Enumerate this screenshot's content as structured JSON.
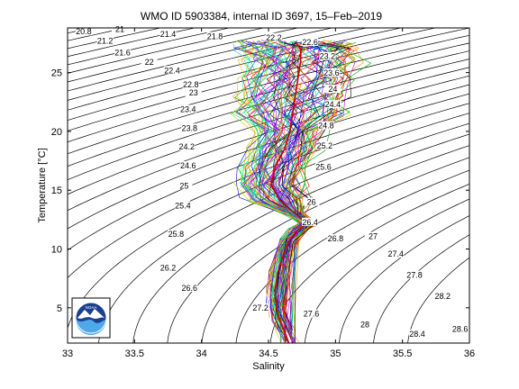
{
  "chart_data": {
    "type": "line",
    "title": "WMO ID 5903384, internal ID 3697, 15–Feb–2019",
    "xlabel": "Salinity",
    "ylabel": "Temperature [°C]",
    "xlim": [
      33,
      36
    ],
    "ylim": [
      2,
      28.8
    ],
    "xticks": [
      "33",
      "33.5",
      "34",
      "34.5",
      "35",
      "35.5",
      "36"
    ],
    "yticks": [
      "5",
      "10",
      "15",
      "20",
      "25"
    ],
    "grid": false,
    "legend": "none",
    "logo": "NOAA",
    "density_labels": [
      {
        "text": "20.8",
        "s": 33.12,
        "t": 28.4
      },
      {
        "text": "21",
        "s": 33.39,
        "t": 28.6
      },
      {
        "text": "21.2",
        "s": 33.28,
        "t": 27.6
      },
      {
        "text": "21.4",
        "s": 33.75,
        "t": 28.2
      },
      {
        "text": "21.6",
        "s": 33.41,
        "t": 26.6
      },
      {
        "text": "22",
        "s": 33.61,
        "t": 25.8
      },
      {
        "text": "22.4",
        "s": 33.78,
        "t": 25.1
      },
      {
        "text": "22.8",
        "s": 33.92,
        "t": 23.9
      },
      {
        "text": "23",
        "s": 33.94,
        "t": 23.2
      },
      {
        "text": "23.4",
        "s": 33.9,
        "t": 21.8
      },
      {
        "text": "23.8",
        "s": 33.91,
        "t": 20.2
      },
      {
        "text": "24.2",
        "s": 33.89,
        "t": 18.6
      },
      {
        "text": "24.6",
        "s": 33.9,
        "t": 17.0
      },
      {
        "text": "25",
        "s": 33.87,
        "t": 15.3
      },
      {
        "text": "25.4",
        "s": 33.86,
        "t": 13.6
      },
      {
        "text": "25.8",
        "s": 33.81,
        "t": 11.2
      },
      {
        "text": "26.2",
        "s": 33.75,
        "t": 8.3
      },
      {
        "text": "26.6",
        "s": 33.91,
        "t": 6.6
      },
      {
        "text": "27.2",
        "s": 34.44,
        "t": 4.9
      },
      {
        "text": "27.6",
        "s": 34.82,
        "t": 4.4
      },
      {
        "text": "28",
        "s": 35.22,
        "t": 3.5
      },
      {
        "text": "28.4",
        "s": 35.61,
        "t": 2.7
      },
      {
        "text": "28.6",
        "s": 35.93,
        "t": 3.1
      },
      {
        "text": "28.2",
        "s": 35.8,
        "t": 5.9
      },
      {
        "text": "27.8",
        "s": 35.59,
        "t": 7.7
      },
      {
        "text": "27.4",
        "s": 35.45,
        "t": 9.5
      },
      {
        "text": "27",
        "s": 35.28,
        "t": 11.0
      },
      {
        "text": "26.8",
        "s": 35.0,
        "t": 10.8
      },
      {
        "text": "26.4",
        "s": 34.81,
        "t": 12.2
      },
      {
        "text": "26",
        "s": 34.82,
        "t": 13.9
      },
      {
        "text": "25.6",
        "s": 34.91,
        "t": 16.9
      },
      {
        "text": "25.2",
        "s": 34.92,
        "t": 18.7
      },
      {
        "text": "24.8",
        "s": 34.93,
        "t": 20.4
      },
      {
        "text": "24.4",
        "s": 34.98,
        "t": 22.2
      },
      {
        "text": "24",
        "s": 34.98,
        "t": 23.5
      },
      {
        "text": "23.6",
        "s": 34.97,
        "t": 24.9
      },
      {
        "text": "23.2",
        "s": 34.94,
        "t": 26.3
      },
      {
        "text": "22.6",
        "s": 34.81,
        "t": 27.5
      },
      {
        "text": "22.2",
        "s": 34.54,
        "t": 27.9
      },
      {
        "text": "21.8",
        "s": 34.1,
        "t": 28.0
      }
    ],
    "mean_profile": [
      {
        "s": 34.65,
        "t": 2.0
      },
      {
        "s": 34.62,
        "t": 3.0
      },
      {
        "s": 34.58,
        "t": 4.0
      },
      {
        "s": 34.56,
        "t": 5.0
      },
      {
        "s": 34.55,
        "t": 6.5
      },
      {
        "s": 34.57,
        "t": 8.0
      },
      {
        "s": 34.61,
        "t": 9.5
      },
      {
        "s": 34.66,
        "t": 10.8
      },
      {
        "s": 34.72,
        "t": 11.6
      },
      {
        "s": 34.79,
        "t": 12.2
      },
      {
        "s": 34.7,
        "t": 13.0
      },
      {
        "s": 34.58,
        "t": 14.2
      },
      {
        "s": 34.52,
        "t": 15.5
      },
      {
        "s": 34.55,
        "t": 17.0
      },
      {
        "s": 34.62,
        "t": 18.5
      },
      {
        "s": 34.66,
        "t": 20.0
      },
      {
        "s": 34.68,
        "t": 21.5
      },
      {
        "s": 34.7,
        "t": 23.0
      },
      {
        "s": 34.72,
        "t": 24.5
      },
      {
        "s": 34.74,
        "t": 26.0
      },
      {
        "s": 34.74,
        "t": 27.0
      },
      {
        "s": 34.7,
        "t": 27.6
      }
    ]
  }
}
